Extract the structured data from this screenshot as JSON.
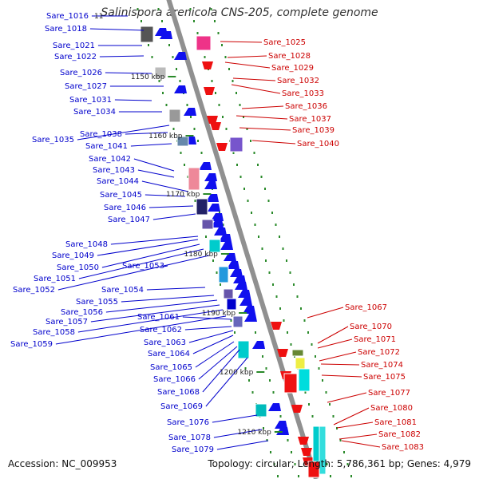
{
  "title": "Salinispora arenicola CNS-205, complete genome",
  "footer": {
    "accession": "Accession: NC_009953",
    "summary": "Topology: circular; Length: 5,786,361 bp; Genes: 4,979"
  },
  "colors": {
    "backbone": "#909090",
    "left_label": "#0000cc",
    "right_label": "#cc0000",
    "tick_green": "#2a8a2a"
  },
  "ticks": [
    "1150 kbp",
    "1160 kbp",
    "1170 kbp",
    "1180 kbp",
    "1190 kbp",
    "1200 kbp",
    "1210 kbp"
  ],
  "left_genes": [
    "Sare_1016",
    "Sare_1018",
    "Sare_1021",
    "Sare_1022",
    "Sare_1026",
    "Sare_1027",
    "Sare_1031",
    "Sare_1034",
    "Sare_1035",
    "Sare_1038",
    "Sare_1041",
    "Sare_1042",
    "Sare_1043",
    "Sare_1044",
    "Sare_1045",
    "Sare_1046",
    "Sare_1047",
    "Sare_1048",
    "Sare_1049",
    "Sare_1050",
    "Sare_1051",
    "Sare_1052",
    "Sare_1053",
    "Sare_1054",
    "Sare_1055",
    "Sare_1056",
    "Sare_1057",
    "Sare_1058",
    "Sare_1059",
    "Sare_1061",
    "Sare_1062",
    "Sare_1063",
    "Sare_1064",
    "Sare_1065",
    "Sare_1066",
    "Sare_1068",
    "Sare_1069",
    "Sare_1076",
    "Sare_1078",
    "Sare_1079"
  ],
  "right_genes": [
    "Sare_1025",
    "Sare_1028",
    "Sare_1029",
    "Sare_1032",
    "Sare_1033",
    "Sare_1036",
    "Sare_1037",
    "Sare_1039",
    "Sare_1040",
    "Sare_1067",
    "Sare_1070",
    "Sare_1071",
    "Sare_1072",
    "Sare_1074",
    "Sare_1075",
    "Sare_1077",
    "Sare_1080",
    "Sare_1081",
    "Sare_1082",
    "Sare_1083"
  ],
  "cropped_text": "11"
}
